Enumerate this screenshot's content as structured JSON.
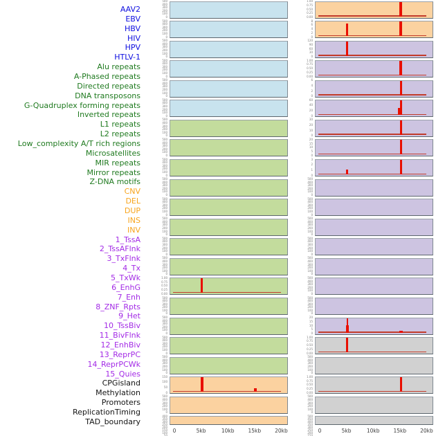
{
  "figure_type": "genomic-feature-profile-grid",
  "chart_data": {
    "type": "line",
    "layout": "44 signal tracks arranged as 2 columns x 22 rows (column-major); each mini-panel shows a red profile line over a 0-20kb window",
    "x_axis": {
      "ticks": [
        "0",
        "5kb",
        "10kb",
        "15kb",
        "20kb"
      ],
      "range_kb": [
        0,
        20
      ]
    },
    "colors": {
      "spike_red": "#e90f00",
      "baseline_red": "#c23b2a",
      "tick_text": "#7a7a7a",
      "axis_text": "#3c3c3c",
      "panel_border": "#7e8890"
    },
    "groups": {
      "virus": {
        "label_color": "#0d0de0",
        "panel_fill": "#c8e3ee"
      },
      "repeats": {
        "label_color": "#1f7a1f",
        "panel_fill": "#c3dc9d"
      },
      "sv": {
        "label_color": "#f7a41c",
        "panel_fill": "#fbd2a0"
      },
      "chromatin_state": {
        "label_color": "#a32ae6",
        "panel_fill": "#cdc4e1"
      },
      "regulation": {
        "label_color": "#141414",
        "panel_fill": "#d1d1d1"
      }
    },
    "tracks": [
      {
        "name": "AAV2",
        "group": "virus",
        "y_ticks": [
          "500",
          "400",
          "300",
          "200",
          "100",
          "0"
        ],
        "baseline": false,
        "peaks": []
      },
      {
        "name": "EBV",
        "group": "virus",
        "y_ticks": [
          "500",
          "400",
          "300",
          "200",
          "100",
          "0"
        ],
        "baseline": false,
        "peaks": []
      },
      {
        "name": "HBV",
        "group": "virus",
        "y_ticks": [
          "500",
          "400",
          "300",
          "200",
          "100",
          "0"
        ],
        "baseline": false,
        "peaks": []
      },
      {
        "name": "HIV",
        "group": "virus",
        "y_ticks": [
          "500",
          "400",
          "300",
          "200",
          "100",
          "0"
        ],
        "baseline": false,
        "peaks": []
      },
      {
        "name": "HPV",
        "group": "virus",
        "y_ticks": [
          "500",
          "400",
          "300",
          "200",
          "100",
          "0"
        ],
        "baseline": false,
        "peaks": []
      },
      {
        "name": "HTLV-1",
        "group": "virus",
        "y_ticks": [
          "500",
          "400",
          "300",
          "200",
          "100",
          "0"
        ],
        "baseline": false,
        "peaks": []
      },
      {
        "name": "Alu repeats",
        "group": "repeats",
        "y_ticks": [
          "500",
          "400",
          "300",
          "200",
          "100",
          "0"
        ],
        "baseline": false,
        "peaks": []
      },
      {
        "name": "A-Phased repeats",
        "group": "repeats",
        "y_ticks": [
          "500",
          "400",
          "300",
          "200",
          "100",
          "0"
        ],
        "baseline": false,
        "peaks": []
      },
      {
        "name": "Directed repeats",
        "group": "repeats",
        "y_ticks": [
          "500",
          "400",
          "300",
          "200",
          "100",
          "0"
        ],
        "baseline": false,
        "peaks": []
      },
      {
        "name": "DNA transposons",
        "group": "repeats",
        "y_ticks": [
          "500",
          "400",
          "300",
          "200",
          "100",
          "0"
        ],
        "baseline": false,
        "peaks": []
      },
      {
        "name": "G-Quadruplex forming repeats",
        "group": "repeats",
        "y_ticks": [
          "500",
          "400",
          "300",
          "200",
          "100",
          "0"
        ],
        "baseline": false,
        "peaks": []
      },
      {
        "name": "Inverted repeats",
        "group": "repeats",
        "y_ticks": [
          "500",
          "400",
          "300",
          "200",
          "100",
          "0"
        ],
        "baseline": false,
        "peaks": []
      },
      {
        "name": "L1 repeats",
        "group": "repeats",
        "y_ticks": [
          "500",
          "400",
          "300",
          "200",
          "100",
          "0"
        ],
        "baseline": false,
        "peaks": []
      },
      {
        "name": "L2 repeats",
        "group": "repeats",
        "y_ticks": [
          "500",
          "400",
          "300",
          "200",
          "100",
          "0"
        ],
        "baseline": false,
        "peaks": []
      },
      {
        "name": "Low_complexity A/T rich regions",
        "group": "repeats",
        "y_ticks": [
          "1.00",
          "0.75",
          "0.50",
          "0.25",
          "0.00"
        ],
        "baseline": true,
        "peaks": [
          {
            "x_kb": 5,
            "y": "1.00",
            "h": 1.0,
            "w": 3
          }
        ]
      },
      {
        "name": "Microsatellites",
        "group": "repeats",
        "y_ticks": [
          "500",
          "400",
          "300",
          "200",
          "100",
          "0"
        ],
        "baseline": false,
        "peaks": []
      },
      {
        "name": "MIR repeats",
        "group": "repeats",
        "y_ticks": [
          "500",
          "400",
          "300",
          "200",
          "100",
          "0"
        ],
        "baseline": false,
        "peaks": []
      },
      {
        "name": "Mirror repeats",
        "group": "repeats",
        "y_ticks": [
          "500",
          "400",
          "300",
          "200",
          "100",
          "0"
        ],
        "baseline": false,
        "peaks": []
      },
      {
        "name": "Z-DNA motifs",
        "group": "repeats",
        "y_ticks": [
          "500",
          "400",
          "300",
          "200",
          "100",
          "0"
        ],
        "baseline": false,
        "peaks": []
      },
      {
        "name": "CNV",
        "group": "sv",
        "y_ticks": [
          "150",
          "100",
          "50",
          "0"
        ],
        "baseline": true,
        "peaks": [
          {
            "x_kb": 5,
            "y": "165",
            "h": 1.0,
            "w": 4
          },
          {
            "x_kb": 15,
            "y": "40",
            "h": 0.27,
            "w": 4
          }
        ]
      },
      {
        "name": "DEL",
        "group": "sv",
        "y_ticks": [
          "500",
          "400",
          "300",
          "200",
          "100",
          "0"
        ],
        "baseline": false,
        "peaks": []
      },
      {
        "name": "DUP",
        "group": "sv",
        "y_ticks": [
          "400",
          "350",
          "300",
          "250",
          "200",
          "150",
          "100",
          "50",
          "0"
        ],
        "baseline": false,
        "peaks": []
      },
      {
        "name": "INS",
        "group": "sv",
        "y_ticks": [
          "1.00",
          "0.75",
          "0.50",
          "0.25",
          "0.00"
        ],
        "baseline": true,
        "peaks": [
          {
            "x_kb": 15,
            "y": "1.00",
            "h": 1.0,
            "w": 4
          }
        ]
      },
      {
        "name": "INV",
        "group": "sv",
        "y_ticks": [
          "8",
          "6",
          "4",
          "2",
          "0"
        ],
        "baseline": true,
        "peaks": [
          {
            "x_kb": 5,
            "y": "7",
            "h": 0.85,
            "w": 3
          },
          {
            "x_kb": 15,
            "y": "8",
            "h": 1.0,
            "w": 4
          }
        ]
      },
      {
        "name": "1_TssA",
        "group": "chromatin_state",
        "y_ticks": [
          "120",
          "90",
          "60",
          "30",
          "0"
        ],
        "baseline": true,
        "peaks": [
          {
            "x_kb": 5,
            "y": "120",
            "h": 1.0,
            "w": 3
          }
        ]
      },
      {
        "name": "2_TssAFlnk",
        "group": "chromatin_state",
        "y_ticks": [
          "1.00",
          "0.75",
          "0.50",
          "0.25",
          "0.00"
        ],
        "baseline": true,
        "peaks": [
          {
            "x_kb": 15,
            "y": "1.00",
            "h": 1.0,
            "w": 4
          }
        ]
      },
      {
        "name": "3_TxFlnk",
        "group": "chromatin_state",
        "y_ticks": [
          "6",
          "4",
          "2",
          "0"
        ],
        "baseline": true,
        "peaks": [
          {
            "x_kb": 15,
            "y": "6",
            "h": 1.0,
            "w": 3
          }
        ]
      },
      {
        "name": "4_Tx",
        "group": "chromatin_state",
        "y_ticks": [
          "60",
          "40",
          "20",
          "0"
        ],
        "baseline": true,
        "peaks": [
          {
            "x_kb": 15,
            "y": "60",
            "h": 1.0,
            "w": 3
          },
          {
            "x_kb": 14.6,
            "y": "30",
            "h": 0.5,
            "w": 3
          }
        ]
      },
      {
        "name": "5_TxWk",
        "group": "chromatin_state",
        "y_ticks": [
          "30",
          "20",
          "10",
          "0"
        ],
        "baseline": true,
        "peaks": [
          {
            "x_kb": 15,
            "y": "30",
            "h": 1.0,
            "w": 3
          }
        ]
      },
      {
        "name": "6_EnhG",
        "group": "chromatin_state",
        "y_ticks": [
          "20",
          "15",
          "10",
          "5",
          "0"
        ],
        "baseline": true,
        "peaks": [
          {
            "x_kb": 15,
            "y": "20",
            "h": 1.0,
            "w": 3
          }
        ]
      },
      {
        "name": "7_Enh",
        "group": "chromatin_state",
        "y_ticks": [
          "3",
          "2",
          "1",
          "0"
        ],
        "baseline": true,
        "peaks": [
          {
            "x_kb": 5,
            "y": "1",
            "h": 0.33,
            "w": 3
          },
          {
            "x_kb": 15,
            "y": "3",
            "h": 1.0,
            "w": 3
          }
        ]
      },
      {
        "name": "8_ZNF_Rpts",
        "group": "chromatin_state",
        "y_ticks": [
          "500",
          "400",
          "300",
          "200",
          "100",
          "0"
        ],
        "baseline": false,
        "peaks": []
      },
      {
        "name": "9_Het",
        "group": "chromatin_state",
        "y_ticks": [
          "500",
          "400",
          "300",
          "200",
          "100",
          "0"
        ],
        "baseline": false,
        "peaks": []
      },
      {
        "name": "10_TssBiv",
        "group": "chromatin_state",
        "y_ticks": [
          "500",
          "400",
          "300",
          "200",
          "100",
          "0"
        ],
        "baseline": false,
        "peaks": []
      },
      {
        "name": "11_BivFlnk",
        "group": "chromatin_state",
        "y_ticks": [
          "500",
          "400",
          "300",
          "200",
          "100",
          "0"
        ],
        "baseline": false,
        "peaks": []
      },
      {
        "name": "12_EnhBiv",
        "group": "chromatin_state",
        "y_ticks": [
          "500",
          "400",
          "300",
          "200",
          "100",
          "0"
        ],
        "baseline": false,
        "peaks": []
      },
      {
        "name": "13_ReprPC",
        "group": "chromatin_state",
        "y_ticks": [
          "500",
          "400",
          "300",
          "200",
          "100",
          "0"
        ],
        "baseline": false,
        "peaks": []
      },
      {
        "name": "14_ReprPCWk",
        "group": "chromatin_state",
        "y_ticks": [
          "500",
          "400",
          "300",
          "200",
          "100",
          "0"
        ],
        "baseline": false,
        "peaks": []
      },
      {
        "name": "15_Quies",
        "group": "chromatin_state",
        "y_ticks": [
          "20",
          "15",
          "10",
          "5",
          "0"
        ],
        "baseline": true,
        "peaks": [
          {
            "x_kb": 5,
            "y": "20",
            "h": 1.0,
            "w": 2
          },
          {
            "x_kb": 5,
            "y": "10",
            "h": 0.5,
            "w": 4
          },
          {
            "x_kb": 15,
            "y": "2.5",
            "h": 0.13,
            "w": 5
          }
        ]
      },
      {
        "name": "CPGisland",
        "group": "regulation",
        "y_ticks": [
          "1.00",
          "0.75",
          "0.50",
          "0.25",
          "0.00"
        ],
        "baseline": true,
        "peaks": [
          {
            "x_kb": 5,
            "y": "1.00",
            "h": 1.0,
            "w": 3
          }
        ]
      },
      {
        "name": "Methylation",
        "group": "regulation",
        "y_ticks": [
          "500",
          "400",
          "300",
          "200",
          "100",
          "0"
        ],
        "baseline": false,
        "peaks": []
      },
      {
        "name": "Promoters",
        "group": "regulation",
        "y_ticks": [
          "1.00",
          "0.75",
          "0.50",
          "0.25",
          "0.00"
        ],
        "baseline": true,
        "peaks": [
          {
            "x_kb": 15,
            "y": "1.00",
            "h": 1.0,
            "w": 3
          }
        ]
      },
      {
        "name": "ReplicationTiming",
        "group": "regulation",
        "y_ticks": [
          "500",
          "400",
          "300",
          "200",
          "100",
          "0"
        ],
        "baseline": false,
        "peaks": []
      },
      {
        "name": "TAD_boundary",
        "group": "regulation",
        "y_ticks": [
          "500",
          "450",
          "400",
          "350",
          "300",
          "250",
          "200",
          "150",
          "100",
          "50",
          "0"
        ],
        "baseline": false,
        "peaks": []
      }
    ]
  }
}
